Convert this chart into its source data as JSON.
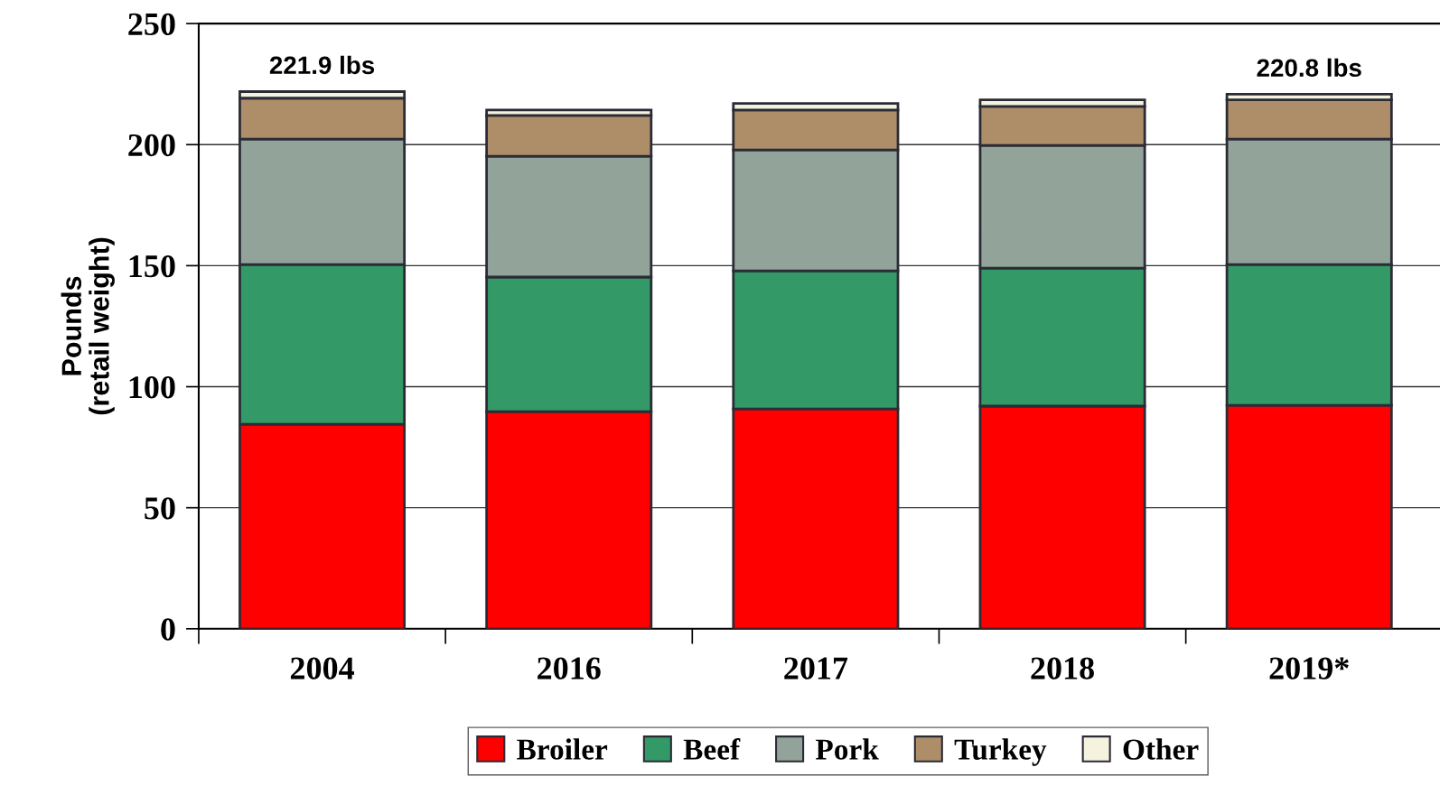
{
  "chart_data": {
    "type": "bar",
    "stacked": true,
    "ylabel": "Pounds\n(retail weight)",
    "categories": [
      "2004",
      "2016",
      "2017",
      "2018",
      "2019*"
    ],
    "series": [
      {
        "name": "Broiler",
        "color": "#ff0000",
        "values": [
          84.5,
          89.7,
          90.8,
          92.0,
          92.3
        ]
      },
      {
        "name": "Beef",
        "color": "#339966",
        "values": [
          66.0,
          55.6,
          57.1,
          57.0,
          58.2
        ]
      },
      {
        "name": "Pork",
        "color": "#92a399",
        "values": [
          51.8,
          49.9,
          49.9,
          50.7,
          51.8
        ]
      },
      {
        "name": "Turkey",
        "color": "#ad8e68",
        "values": [
          16.9,
          16.9,
          16.5,
          16.1,
          16.2
        ]
      },
      {
        "name": "Other",
        "color": "#f5f2de",
        "values": [
          2.7,
          2.2,
          2.7,
          2.7,
          2.3
        ]
      }
    ],
    "ylim": [
      0,
      250
    ],
    "yticks": [
      0,
      50,
      100,
      150,
      200,
      250
    ],
    "grid": "y",
    "legend": "bottom",
    "annotations": [
      {
        "text": "221.9 lbs",
        "x": "2004",
        "y": 221.9
      },
      {
        "text": "220.8 lbs",
        "x": "2019*",
        "y": 220.8
      }
    ]
  }
}
